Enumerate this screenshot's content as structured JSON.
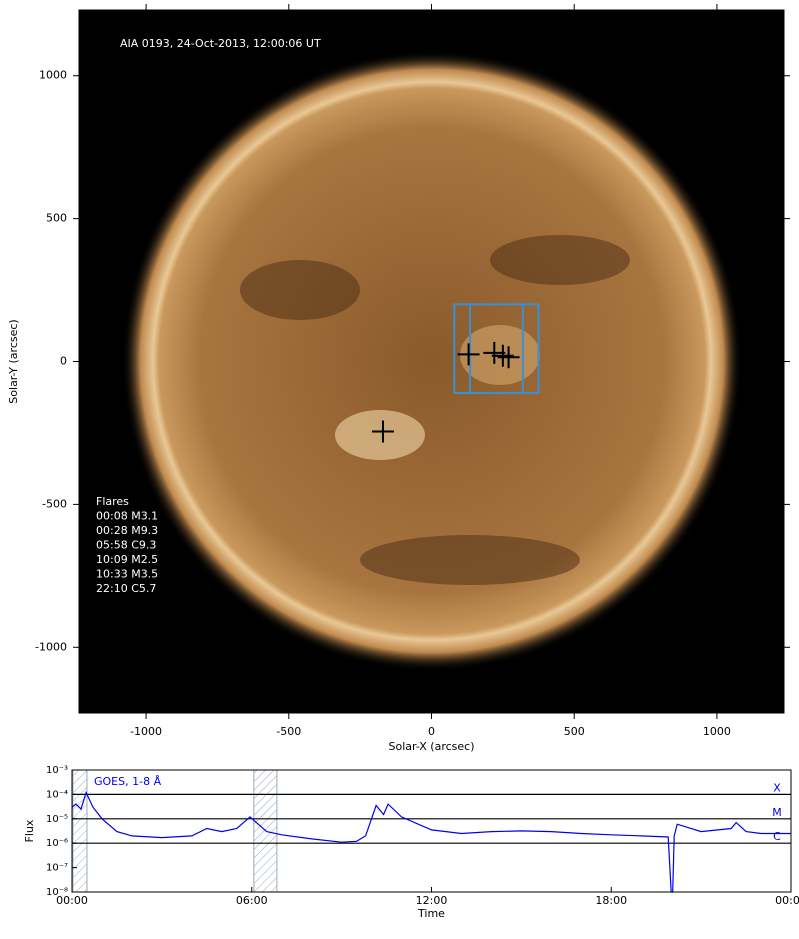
{
  "chart_data": [
    {
      "type": "image",
      "title": "AIA 0193, 24-Oct-2013, 12:00:06 UT",
      "xlabel": "Solar-X (arcsec)",
      "ylabel": "Solar-Y (arcsec)",
      "xlim": [
        -1235,
        1235
      ],
      "ylim": [
        -1230,
        1230
      ],
      "xticks": [
        -1000,
        -500,
        0,
        500,
        1000
      ],
      "yticks": [
        -1000,
        -500,
        0,
        500,
        1000
      ],
      "flare_title": "Flares",
      "flares": [
        "00:08 M3.1",
        "00:28 M9.3",
        "05:58 C9.3",
        "10:09 M2.5",
        "10:33 M3.5",
        "22:10 C5.7"
      ],
      "markers": {
        "x": [
          -170,
          130,
          220,
          250,
          270
        ],
        "y": [
          -245,
          25,
          30,
          20,
          15
        ],
        "color": "#000000"
      },
      "box": {
        "x": [
          80,
          375
        ],
        "y": [
          -110,
          200
        ],
        "color": "#3a8fd9"
      },
      "box_lines_x": [
        135,
        320
      ]
    },
    {
      "type": "line",
      "xlabel": "Time",
      "ylabel": "Flux",
      "log_y": true,
      "xlim": [
        0,
        24
      ],
      "xticks": [
        {
          "value": 0,
          "label": "00:00"
        },
        {
          "value": 6,
          "label": "06:00"
        },
        {
          "value": 12,
          "label": "12:00"
        },
        {
          "value": 18,
          "label": "18:00"
        },
        {
          "value": 24,
          "label": "00:00"
        }
      ],
      "ylim": [
        1e-08,
        0.001
      ],
      "yticks": [
        {
          "value": 1e-08,
          "label": "10⁻⁸"
        },
        {
          "value": 1e-07,
          "label": "10⁻⁷"
        },
        {
          "value": 1e-06,
          "label": "10⁻⁶"
        },
        {
          "value": 1e-05,
          "label": "10⁻⁵"
        },
        {
          "value": 0.0001,
          "label": "10⁻⁴"
        },
        {
          "value": 0.001,
          "label": "10⁻³"
        }
      ],
      "class_lines": [
        {
          "value": 0.0001,
          "label": "X"
        },
        {
          "value": 1e-05,
          "label": "M"
        },
        {
          "value": 1e-06,
          "label": "C"
        }
      ],
      "shaded": [
        [
          0.03,
          0.5
        ],
        [
          6.07,
          6.84
        ]
      ],
      "series": [
        {
          "name": "GOES, 1-8 Å",
          "color": "#0000ee",
          "x": [
            0,
            0.13,
            0.3,
            0.47,
            0.7,
            1,
            1.5,
            2,
            3,
            4,
            4.5,
            5,
            5.5,
            5.94,
            6.5,
            7,
            8,
            9,
            9.5,
            9.8,
            10.15,
            10.4,
            10.55,
            11,
            12,
            13,
            14,
            15,
            16,
            17,
            18,
            19,
            19.9,
            20,
            20.05,
            20.1,
            20.2,
            21,
            22,
            22.17,
            22.5,
            23,
            24
          ],
          "values": [
            3e-05,
            4e-05,
            2.5e-05,
            0.00012,
            3e-05,
            1e-05,
            3e-06,
            2e-06,
            1.7e-06,
            2e-06,
            4e-06,
            3e-06,
            4e-06,
            1.2e-05,
            3e-06,
            2.2e-06,
            1.5e-06,
            1.1e-06,
            1.2e-06,
            2e-06,
            3.5e-05,
            1.5e-05,
            4e-05,
            1.2e-05,
            3.5e-06,
            2.5e-06,
            3e-06,
            3.2e-06,
            3e-06,
            2.5e-06,
            2.2e-06,
            2e-06,
            1.8e-06,
            1e-08,
            1e-08,
            2e-06,
            6e-06,
            3e-06,
            4e-06,
            7e-06,
            3e-06,
            2.5e-06,
            2.5e-06
          ]
        }
      ]
    }
  ]
}
